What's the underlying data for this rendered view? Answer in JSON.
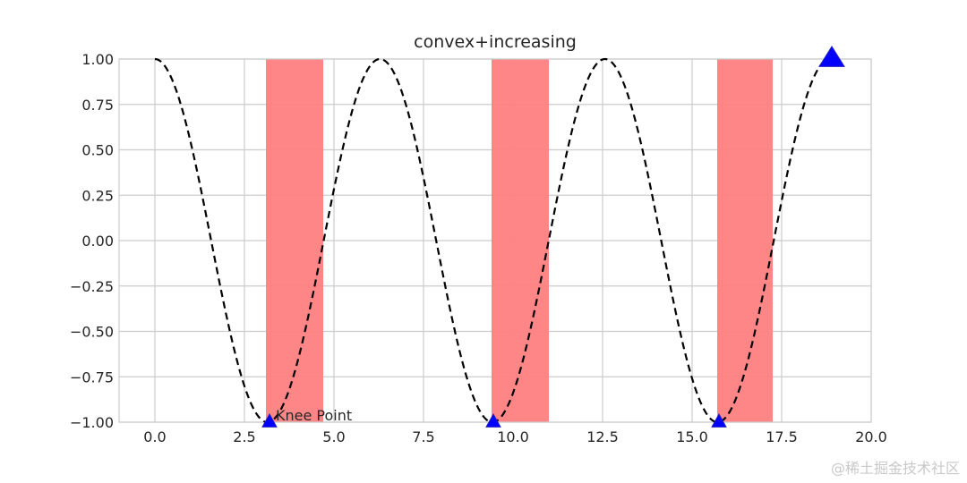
{
  "chart_data": {
    "type": "line",
    "title": "convex+increasing",
    "xlabel": "",
    "ylabel": "",
    "xlim": [
      -1.0,
      20.0
    ],
    "ylim": [
      -1.0,
      1.0
    ],
    "x_ticks": [
      0.0,
      2.5,
      5.0,
      7.5,
      10.0,
      12.5,
      15.0,
      17.5,
      20.0
    ],
    "x_tick_labels": [
      "0.0",
      "2.5",
      "5.0",
      "7.5",
      "10.0",
      "12.5",
      "15.0",
      "17.5",
      "20.0"
    ],
    "y_ticks": [
      1.0,
      0.75,
      0.5,
      0.25,
      0.0,
      -0.25,
      -0.5,
      -0.75,
      -1.0
    ],
    "y_tick_labels": [
      "1.00",
      "0.75",
      "0.50",
      "0.25",
      "0.00",
      "−0.25",
      "−0.50",
      "−0.75",
      "−1.00"
    ],
    "grid": true,
    "series": [
      {
        "function": "cos(x)",
        "x_range": [
          0.0,
          19.0
        ],
        "style": "dashed",
        "color": "#000000"
      }
    ],
    "shaded_regions": [
      {
        "x_start": 3.1,
        "x_end": 4.7,
        "color": "#ff7f7f"
      },
      {
        "x_start": 9.4,
        "x_end": 11.0,
        "color": "#ff7f7f"
      },
      {
        "x_start": 15.7,
        "x_end": 17.25,
        "color": "#ff7f7f"
      }
    ],
    "knee_points": [
      {
        "x": 3.2,
        "y": -1.0,
        "size": "small"
      },
      {
        "x": 9.45,
        "y": -1.0,
        "size": "small"
      },
      {
        "x": 15.75,
        "y": -1.0,
        "size": "small"
      },
      {
        "x": 18.9,
        "y": 1.0,
        "size": "large"
      }
    ],
    "marker_color": "#0000ff",
    "annotations": [
      {
        "text": "Knee Point",
        "x": 3.2,
        "y": -1.0
      }
    ]
  },
  "watermark": "@稀土掘金技术社区"
}
